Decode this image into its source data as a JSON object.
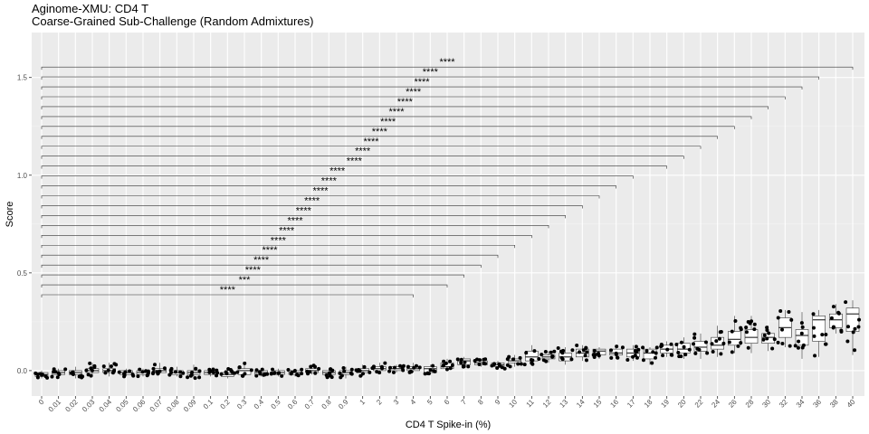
{
  "chart_data": {
    "type": "box",
    "title": "Aginome-XMU: CD4 T",
    "subtitle": "Coarse-Grained Sub-Challenge (Random Admixtures)",
    "xlabel": "CD4 T Spike-in (%)",
    "ylabel": "Score",
    "ylim": [
      -0.13,
      1.73
    ],
    "y_ticks": [
      "0.0",
      "0.5",
      "1.0",
      "1.5"
    ],
    "y_tick_values": [
      0.0,
      0.5,
      1.0,
      1.5
    ],
    "grid": true,
    "background": "#ebebeb",
    "categories": [
      "0",
      "0.01",
      "0.02",
      "0.03",
      "0.04",
      "0.05",
      "0.06",
      "0.07",
      "0.08",
      "0.09",
      "0.1",
      "0.2",
      "0.3",
      "0.4",
      "0.5",
      "0.6",
      "0.7",
      "0.8",
      "0.9",
      "1",
      "2",
      "3",
      "4",
      "5",
      "6",
      "7",
      "8",
      "9",
      "10",
      "11",
      "12",
      "13",
      "14",
      "15",
      "16",
      "17",
      "18",
      "19",
      "20",
      "22",
      "24",
      "26",
      "28",
      "30",
      "32",
      "34",
      "36",
      "38",
      "40"
    ],
    "medians": [
      -0.02,
      -0.01,
      -0.01,
      0.0,
      0.0,
      -0.01,
      -0.01,
      0.0,
      -0.01,
      -0.01,
      -0.01,
      -0.02,
      0.0,
      -0.01,
      -0.01,
      -0.01,
      0.0,
      -0.01,
      -0.01,
      0.0,
      0.01,
      0.01,
      0.01,
      0.01,
      0.02,
      0.05,
      0.04,
      0.03,
      0.05,
      0.07,
      0.07,
      0.07,
      0.09,
      0.1,
      0.09,
      0.09,
      0.09,
      0.11,
      0.11,
      0.12,
      0.13,
      0.16,
      0.17,
      0.17,
      0.22,
      0.18,
      0.26,
      0.26,
      0.29
    ],
    "q1": [
      -0.03,
      -0.02,
      -0.02,
      -0.01,
      -0.01,
      -0.02,
      -0.02,
      -0.01,
      -0.02,
      -0.02,
      -0.02,
      -0.03,
      -0.02,
      -0.02,
      -0.02,
      -0.02,
      -0.01,
      -0.02,
      -0.02,
      -0.01,
      0.0,
      0.0,
      0.0,
      -0.01,
      0.01,
      0.03,
      0.03,
      0.02,
      0.04,
      0.05,
      0.06,
      0.05,
      0.07,
      0.08,
      0.08,
      0.07,
      0.06,
      0.09,
      0.09,
      0.1,
      0.11,
      0.13,
      0.14,
      0.14,
      0.17,
      0.13,
      0.15,
      0.22,
      0.2
    ],
    "q3": [
      -0.01,
      0.0,
      0.0,
      0.01,
      0.01,
      0.0,
      0.0,
      0.01,
      0.0,
      0.0,
      0.0,
      -0.01,
      0.01,
      0.0,
      0.0,
      0.0,
      0.01,
      0.0,
      0.0,
      0.01,
      0.02,
      0.02,
      0.02,
      0.02,
      0.04,
      0.06,
      0.05,
      0.04,
      0.06,
      0.1,
      0.08,
      0.09,
      0.11,
      0.11,
      0.11,
      0.11,
      0.11,
      0.13,
      0.14,
      0.15,
      0.17,
      0.2,
      0.21,
      0.19,
      0.27,
      0.21,
      0.28,
      0.29,
      0.32
    ],
    "whisker_low": [
      -0.04,
      -0.04,
      -0.04,
      -0.03,
      -0.03,
      -0.03,
      -0.03,
      -0.02,
      -0.03,
      -0.04,
      -0.03,
      -0.04,
      -0.03,
      -0.03,
      -0.03,
      -0.03,
      -0.02,
      -0.04,
      -0.04,
      -0.03,
      -0.01,
      -0.01,
      -0.01,
      -0.02,
      0.0,
      0.02,
      0.02,
      0.01,
      0.02,
      0.03,
      0.04,
      0.03,
      0.05,
      0.06,
      0.06,
      0.05,
      0.03,
      0.07,
      0.06,
      0.06,
      0.07,
      0.09,
      0.09,
      0.1,
      0.12,
      0.06,
      0.07,
      0.19,
      0.08
    ],
    "whisker_high": [
      0.0,
      0.01,
      0.02,
      0.04,
      0.04,
      0.01,
      0.01,
      0.04,
      0.02,
      0.03,
      0.01,
      0.01,
      0.04,
      0.01,
      0.01,
      0.01,
      0.03,
      0.01,
      0.02,
      0.03,
      0.04,
      0.03,
      0.04,
      0.03,
      0.06,
      0.07,
      0.06,
      0.05,
      0.08,
      0.13,
      0.1,
      0.12,
      0.13,
      0.12,
      0.13,
      0.13,
      0.12,
      0.15,
      0.17,
      0.19,
      0.23,
      0.28,
      0.28,
      0.23,
      0.31,
      0.3,
      0.31,
      0.34,
      0.36
    ],
    "comparison_labels": [
      "****",
      "***",
      "****",
      "****",
      "****",
      "****",
      "****",
      "****",
      "****",
      "****",
      "****",
      "****",
      "****",
      "****",
      "****",
      "****",
      "****",
      "****",
      "****",
      "****",
      "****",
      "****",
      "****",
      "****"
    ],
    "comparison_pairs": [
      [
        "0",
        "4"
      ],
      [
        "0",
        "6"
      ],
      [
        "0",
        "7"
      ],
      [
        "0",
        "8"
      ],
      [
        "0",
        "9"
      ],
      [
        "0",
        "10"
      ],
      [
        "0",
        "11"
      ],
      [
        "0",
        "12"
      ],
      [
        "0",
        "13"
      ],
      [
        "0",
        "14"
      ],
      [
        "0",
        "15"
      ],
      [
        "0",
        "16"
      ],
      [
        "0",
        "17"
      ],
      [
        "0",
        "19"
      ],
      [
        "0",
        "20"
      ],
      [
        "0",
        "22"
      ],
      [
        "0",
        "24"
      ],
      [
        "0",
        "26"
      ],
      [
        "0",
        "28"
      ],
      [
        "0",
        "30"
      ],
      [
        "0",
        "32"
      ],
      [
        "0",
        "34"
      ],
      [
        "0",
        "36"
      ],
      [
        "0",
        "40"
      ]
    ]
  }
}
